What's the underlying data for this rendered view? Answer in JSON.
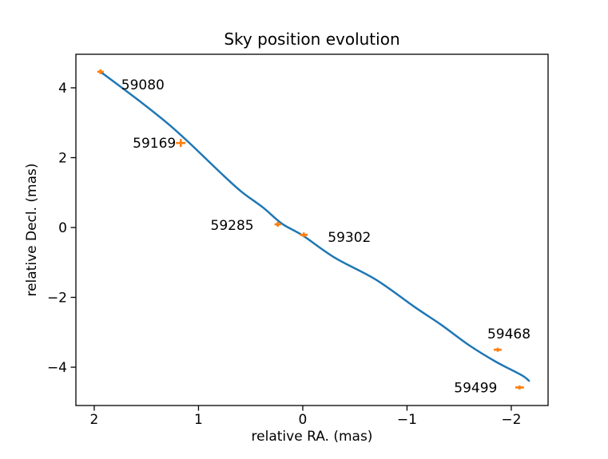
{
  "chart_data": {
    "type": "line",
    "title": "Sky position evolution",
    "xlabel": "relative RA. (mas)",
    "ylabel": "relative Decl. (mas)",
    "xlim": [
      2.176,
      -2.353
    ],
    "ylim": [
      4.96,
      -5.097
    ],
    "x_axis_inverted": true,
    "grid": false,
    "legend": "none",
    "x_ticks": [
      2,
      1,
      0,
      -1,
      -2
    ],
    "y_ticks": [
      4,
      2,
      0,
      -2,
      -4
    ],
    "colors": {
      "model_curve": "#1f77b4",
      "observations": "#ff7f0e",
      "text": "#000000",
      "spine": "#000000",
      "background": "#ffffff"
    },
    "series": [
      {
        "name": "model curve",
        "type": "line",
        "x": [
          1.94,
          1.6,
          1.3,
          1.08,
          0.8,
          0.59,
          0.38,
          0.2,
          0.0,
          -0.31,
          -0.7,
          -1.08,
          -1.33,
          -1.59,
          -1.85,
          -2.1,
          -2.17
        ],
        "y": [
          4.46,
          3.7,
          2.99,
          2.4,
          1.6,
          1.03,
          0.57,
          0.11,
          -0.23,
          -0.87,
          -1.49,
          -2.29,
          -2.79,
          -3.36,
          -3.84,
          -4.23,
          -4.39
        ]
      },
      {
        "name": "observations",
        "type": "scatter",
        "points": [
          {
            "label": "59080",
            "x": 1.94,
            "y": 4.46,
            "xerr": 0.031,
            "yerr": 0.069,
            "label_dx": 26,
            "label_dy": 16,
            "label_anchor": "start"
          },
          {
            "label": "59169",
            "x": 1.17,
            "y": 2.42,
            "xerr": 0.046,
            "yerr": 0.114,
            "label_dx": -6,
            "label_dy": 0,
            "label_anchor": "end"
          },
          {
            "label": "59285",
            "x": 0.24,
            "y": 0.09,
            "xerr": 0.031,
            "yerr": 0.069,
            "label_dx": -30,
            "label_dy": 1,
            "label_anchor": "end"
          },
          {
            "label": "59302",
            "x": -0.01,
            "y": -0.21,
            "xerr": 0.038,
            "yerr": 0.069,
            "label_dx": 30,
            "label_dy": 3,
            "label_anchor": "start"
          },
          {
            "label": "59468",
            "x": -1.87,
            "y": -3.5,
            "xerr": 0.038,
            "yerr": 0.057,
            "label_dx": -13,
            "label_dy": -20,
            "label_anchor": "start"
          },
          {
            "label": "59499",
            "x": -2.08,
            "y": -4.58,
            "xerr": 0.042,
            "yerr": 0.057,
            "label_dx": -28,
            "label_dy": 0,
            "label_anchor": "end"
          }
        ]
      }
    ]
  }
}
